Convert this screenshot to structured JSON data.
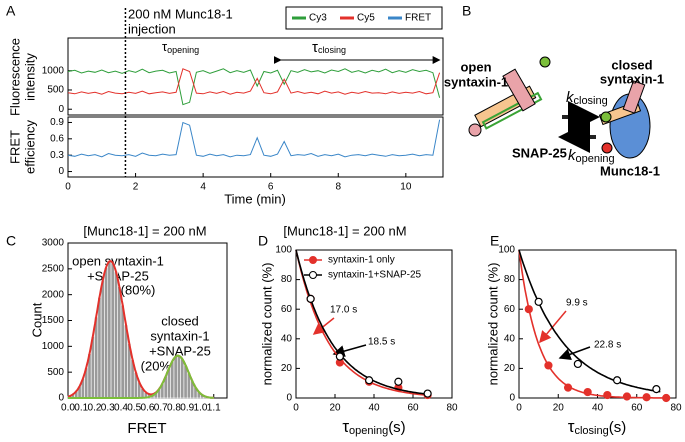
{
  "chart_data": [
    {
      "type": "line",
      "panel": "A",
      "y_label": [
        "Fluorescence",
        "intensity"
      ],
      "xlim": [
        0,
        11.1
      ],
      "ylim": [
        -150,
        1850
      ],
      "yticks": [
        0,
        500,
        1000
      ],
      "annotations": {
        "injection": [
          "200 nM Munc18-1",
          "injection"
        ],
        "injection_time": 1.7,
        "tau_opening": {
          "symbol": "τ",
          "sub": "opening"
        },
        "tau_closing": {
          "symbol": "τ",
          "sub": "closing"
        },
        "closing_start": 6.3,
        "closing_end": 11.0
      },
      "x": [
        0,
        0.2,
        0.4,
        0.6,
        0.8,
        1.0,
        1.2,
        1.4,
        1.6,
        1.8,
        2.0,
        2.2,
        2.4,
        2.6,
        2.8,
        3.0,
        3.2,
        3.4,
        3.6,
        3.8,
        4.0,
        4.2,
        4.4,
        4.6,
        4.8,
        5.0,
        5.2,
        5.4,
        5.6,
        5.8,
        6.0,
        6.2,
        6.4,
        6.6,
        6.8,
        7.0,
        7.2,
        7.4,
        7.6,
        7.8,
        8.0,
        8.2,
        8.4,
        8.6,
        8.8,
        9.0,
        9.2,
        9.4,
        9.6,
        9.8,
        10.0,
        10.2,
        10.4,
        10.6,
        10.8,
        11.0
      ],
      "series": [
        {
          "name": "Cy3",
          "color": "#2e9e3a",
          "values": [
            980,
            1010,
            940,
            990,
            960,
            1020,
            950,
            990,
            930,
            1000,
            960,
            1040,
            950,
            990,
            1010,
            940,
            980,
            120,
            180,
            960,
            1000,
            930,
            990,
            1050,
            950,
            1000,
            960,
            1020,
            600,
            980,
            940,
            1010,
            650,
            1000,
            960,
            1030,
            970,
            1000,
            940,
            1020,
            980,
            1050,
            960,
            1000,
            940,
            1010,
            970,
            1040,
            950,
            1000,
            960,
            1030,
            980,
            1010,
            950,
            300
          ]
        },
        {
          "name": "Cy5",
          "color": "#e3312b",
          "values": [
            430,
            400,
            450,
            410,
            440,
            390,
            460,
            420,
            400,
            440,
            410,
            470,
            400,
            430,
            450,
            410,
            440,
            1050,
            980,
            420,
            400,
            450,
            410,
            460,
            390,
            440,
            420,
            470,
            800,
            430,
            400,
            450,
            780,
            420,
            460,
            410,
            440,
            400,
            470,
            420,
            450,
            390,
            440,
            410,
            460,
            420,
            430,
            400,
            450,
            410,
            440,
            420,
            460,
            400,
            430,
            950
          ]
        }
      ]
    },
    {
      "type": "line",
      "y_label": [
        "FRET",
        "efficiency"
      ],
      "x_label": "Time (min)",
      "xlim": [
        0,
        11.1
      ],
      "ylim": [
        -0.1,
        1.0
      ],
      "xticks": [
        0,
        2,
        4,
        6,
        8,
        10
      ],
      "yticks": [
        0,
        0.3,
        0.6,
        0.9
      ],
      "x": [
        0,
        0.2,
        0.4,
        0.6,
        0.8,
        1.0,
        1.2,
        1.4,
        1.6,
        1.8,
        2.0,
        2.2,
        2.4,
        2.6,
        2.8,
        3.0,
        3.2,
        3.4,
        3.6,
        3.8,
        4.0,
        4.2,
        4.4,
        4.6,
        4.8,
        5.0,
        5.2,
        5.4,
        5.6,
        5.8,
        6.0,
        6.2,
        6.4,
        6.6,
        6.8,
        7.0,
        7.2,
        7.4,
        7.6,
        7.8,
        8.0,
        8.2,
        8.4,
        8.6,
        8.8,
        9.0,
        9.2,
        9.4,
        9.6,
        9.8,
        10.0,
        10.2,
        10.4,
        10.6,
        10.8,
        11.0
      ],
      "series": [
        {
          "name": "FRET",
          "color": "#3a86c8",
          "values": [
            0.3,
            0.28,
            0.32,
            0.29,
            0.31,
            0.27,
            0.33,
            0.3,
            0.29,
            0.31,
            0.28,
            0.34,
            0.3,
            0.29,
            0.32,
            0.3,
            0.31,
            0.9,
            0.85,
            0.3,
            0.28,
            0.32,
            0.29,
            0.31,
            0.27,
            0.3,
            0.29,
            0.31,
            0.62,
            0.3,
            0.28,
            0.32,
            0.55,
            0.29,
            0.31,
            0.3,
            0.33,
            0.28,
            0.31,
            0.29,
            0.32,
            0.27,
            0.3,
            0.31,
            0.29,
            0.32,
            0.3,
            0.28,
            0.31,
            0.29,
            0.3,
            0.32,
            0.29,
            0.31,
            0.3,
            0.95
          ]
        }
      ]
    },
    {
      "type": "histogram",
      "panel": "C",
      "title": "[Munc18-1] = 200 nM",
      "x_label": "FRET",
      "y_label": "Count",
      "color": "#9a9a9a",
      "xlim": [
        0,
        1.2
      ],
      "ylim": [
        0,
        3000
      ],
      "yticks": [
        0,
        500,
        1000,
        1500,
        2000,
        2500,
        3000
      ],
      "xticks": [
        {
          "value": 0,
          "label": "0.0"
        },
        0.1,
        0.2,
        0.3,
        0.4,
        0.5,
        0.6,
        0.7,
        0.8,
        0.9,
        {
          "value": 1,
          "label": "1.0"
        },
        1.1
      ],
      "annotations": {
        "open": [
          "open syntaxin-1",
          "+SNAP-25",
          "(80%)"
        ],
        "closed": [
          "closed",
          "syntaxin-1",
          "+SNAP-25",
          "(20%)"
        ]
      },
      "bins": [
        0,
        0.025,
        0.05,
        0.075,
        0.1,
        0.125,
        0.15,
        0.175,
        0.2,
        0.225,
        0.25,
        0.275,
        0.3,
        0.325,
        0.35,
        0.375,
        0.4,
        0.425,
        0.45,
        0.475,
        0.5,
        0.525,
        0.55,
        0.575,
        0.6,
        0.625,
        0.65,
        0.675,
        0.7,
        0.725,
        0.75,
        0.775,
        0.8,
        0.825,
        0.85,
        0.875,
        0.9,
        0.925,
        0.95,
        0.975,
        1.0,
        1.025,
        1.05,
        1.075,
        1.1
      ],
      "counts": [
        36,
        70,
        130,
        227,
        373,
        584,
        858,
        1190,
        1567,
        1946,
        2281,
        2526,
        2643,
        2613,
        2441,
        2155,
        1796,
        1414,
        1053,
        740,
        494,
        309,
        183,
        103,
        74,
        72,
        104,
        172,
        281,
        420,
        574,
        712,
        800,
        817,
        755,
        633,
        482,
        332,
        208,
        118,
        61,
        28,
        12,
        5
      ],
      "fits": [
        {
          "color": "#e3312b",
          "peaks": [
            {
              "center": 0.32,
              "height": 2650,
              "sigma": 0.105
            },
            {
              "center": 0.83,
              "height": 820,
              "sigma": 0.08
            }
          ]
        },
        {
          "color": "#7bbf3a",
          "peaks": [
            {
              "center": 0.83,
              "height": 820,
              "sigma": 0.08
            }
          ]
        }
      ]
    },
    {
      "type": "scatter",
      "panel": "D",
      "title": "[Munc18-1] = 200 nM",
      "x_label": {
        "symbol": "τ",
        "sub": "opening",
        "unit": "(s)"
      },
      "y_label": "normalized count (%)",
      "xlim": [
        0,
        80
      ],
      "ylim": [
        0,
        100
      ],
      "xticks": [
        0,
        20,
        40,
        60,
        80
      ],
      "yticks": [
        0,
        20,
        40,
        60,
        80,
        100
      ],
      "series": [
        {
          "name": "syntaxin-1 only",
          "color": "#e3312b",
          "filled": true,
          "x": [
            7.5,
            22.5,
            37.5,
            52.5,
            67.5
          ],
          "values": [
            67,
            24,
            11,
            7,
            2
          ],
          "fit": {
            "amplitude": 100,
            "tau": 17.0,
            "label": "17.0 s"
          }
        },
        {
          "name": "syntaxin-1+SNAP-25",
          "color": "#000000",
          "filled": false,
          "x": [
            7.5,
            22.5,
            37.5,
            52.5,
            67.5
          ],
          "values": [
            67,
            28,
            12,
            11,
            3
          ],
          "fit": {
            "amplitude": 100,
            "tau": 18.5,
            "label": "18.5 s"
          }
        }
      ]
    },
    {
      "type": "scatter",
      "panel": "E",
      "x_label": {
        "symbol": "τ",
        "sub": "closing",
        "unit": "(s)"
      },
      "y_label": "normalized count (%)",
      "xlim": [
        0,
        80
      ],
      "ylim": [
        0,
        100
      ],
      "xticks": [
        0,
        20,
        40,
        60,
        80
      ],
      "yticks": [
        0,
        20,
        40,
        60,
        80,
        100
      ],
      "series": [
        {
          "color": "#e3312b",
          "filled": true,
          "x": [
            5,
            15,
            25,
            35,
            45,
            55,
            65,
            75
          ],
          "values": [
            60,
            22,
            7,
            4,
            2,
            1,
            0.5,
            0
          ],
          "fit": {
            "amplitude": 100,
            "tau": 9.9,
            "label": "9.9 s"
          }
        },
        {
          "color": "#000000",
          "filled": false,
          "x": [
            10,
            30,
            50,
            70
          ],
          "values": [
            65,
            23,
            12,
            6
          ],
          "fit": {
            "amplitude": 100,
            "tau": 22.8,
            "label": "22.8 s"
          }
        }
      ]
    }
  ],
  "diagram": {
    "panel": "B",
    "open": [
      "open",
      "syntaxin-1"
    ],
    "closed": [
      "closed",
      "syntaxin-1"
    ],
    "snap25": "SNAP-25",
    "munc18": "Munc18-1",
    "k_closing": {
      "symbol": "k",
      "sub": "closing"
    },
    "k_opening": {
      "symbol": "k",
      "sub": "opening"
    }
  }
}
